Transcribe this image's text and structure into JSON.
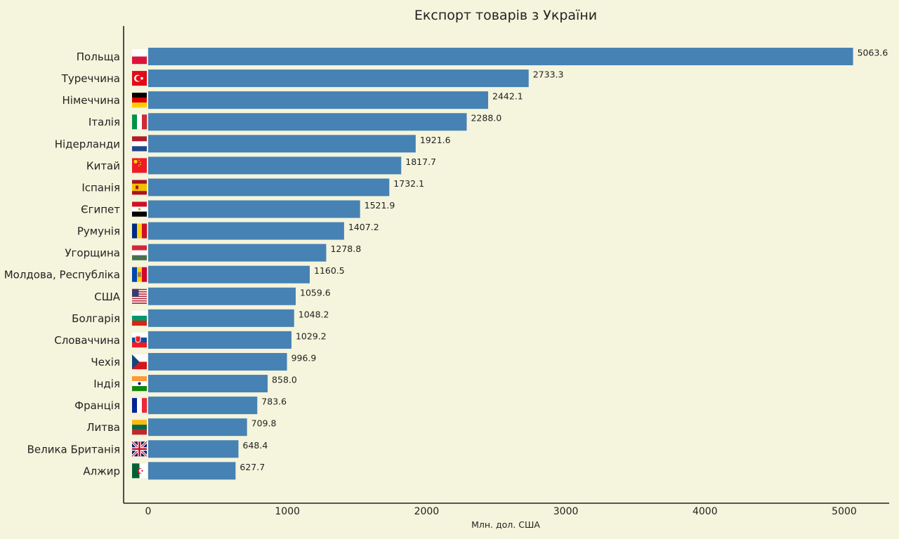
{
  "chart_data": {
    "type": "bar",
    "orientation": "horizontal",
    "title": "Експорт товарів з України",
    "xlabel": "Млн. дол. США",
    "ylabel": "",
    "xlim": [
      0,
      5300
    ],
    "xticks": [
      0,
      1000,
      2000,
      3000,
      4000,
      5000
    ],
    "grid": false,
    "bar_color": "#4682b4",
    "categories": [
      "Польща",
      "Туреччина",
      "Німеччина",
      "Італія",
      "Нідерланди",
      "Китай",
      "Іспанія",
      "Єгипет",
      "Румунія",
      "Угорщина",
      "Молдова, Республіка",
      "США",
      "Болгарія",
      "Словаччина",
      "Чехія",
      "Індія",
      "Франція",
      "Литва",
      "Велика Британія",
      "Алжир"
    ],
    "values": [
      5063.6,
      2733.3,
      2442.1,
      2288.0,
      1921.6,
      1817.7,
      1732.1,
      1521.9,
      1407.2,
      1278.8,
      1160.5,
      1059.6,
      1048.2,
      1029.2,
      996.9,
      858.0,
      783.6,
      709.8,
      648.4,
      627.7
    ],
    "value_labels": [
      "5063.6",
      "2733.3",
      "2442.1",
      "2288.0",
      "1921.6",
      "1817.7",
      "1732.1",
      "1521.9",
      "1407.2",
      "1278.8",
      "1160.5",
      "1059.6",
      "1048.2",
      "1029.2",
      "996.9",
      "858.0",
      "783.6",
      "709.8",
      "648.4",
      "627.7"
    ],
    "flag_icons": [
      "flag-poland-icon",
      "flag-turkey-icon",
      "flag-germany-icon",
      "flag-italy-icon",
      "flag-netherlands-icon",
      "flag-china-icon",
      "flag-spain-icon",
      "flag-egypt-icon",
      "flag-romania-icon",
      "flag-hungary-icon",
      "flag-moldova-icon",
      "flag-usa-icon",
      "flag-bulgaria-icon",
      "flag-slovakia-icon",
      "flag-czechia-icon",
      "flag-india-icon",
      "flag-france-icon",
      "flag-lithuania-icon",
      "flag-uk-icon",
      "flag-algeria-icon"
    ]
  }
}
